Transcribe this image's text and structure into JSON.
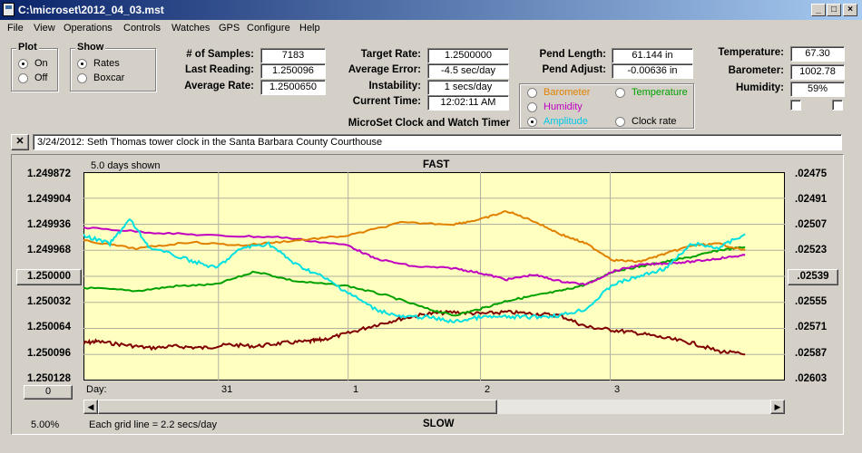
{
  "window": {
    "title": "C:\\microset\\2012_04_03.mst"
  },
  "menu": [
    "File",
    "View",
    "Operations",
    "Controls",
    "Watches",
    "GPS",
    "Configure",
    "Help"
  ],
  "plot": {
    "label": "Plot",
    "on": "On",
    "off": "Off",
    "selected": "On"
  },
  "show": {
    "label": "Show",
    "rates": "Rates",
    "boxcar": "Boxcar",
    "selected": "Rates"
  },
  "stats": {
    "samples_label": "# of Samples:",
    "samples": "7183",
    "last_label": "Last Reading:",
    "last": "1.250096",
    "avg_label": "Average Rate:",
    "avg": "1.2500650"
  },
  "target": {
    "rate_label": "Target Rate:",
    "rate": "1.2500000",
    "err_label": "Average Error:",
    "err": "-4.5 sec/day",
    "inst_label": "Instability:",
    "inst": "1 secs/day",
    "time_label": "Current Time:",
    "time": "12:02:11 AM"
  },
  "pend": {
    "length_label": "Pend Length:",
    "length": "61.144 in",
    "adjust_label": "Pend Adjust:",
    "adjust": "-0.00636 in"
  },
  "env": {
    "temp_label": "Temperature:",
    "temp": "67.30",
    "baro_label": "Barometer:",
    "baro": "1002.78",
    "hum_label": "Humidity:",
    "hum": "59%"
  },
  "app_title": "MicroSet Clock and Watch Timer",
  "series_select": {
    "barometer": "Barometer",
    "temperature": "Temperature",
    "humidity": "Humidity",
    "amplitude": "Amplitude",
    "clockrate": "Clock rate",
    "selected": "Amplitude",
    "colors": {
      "barometer": "#e08000",
      "temperature": "#00a000",
      "humidity": "#c000c0",
      "amplitude": "#00d0d0",
      "clockrate": "#000000"
    }
  },
  "close_btn": "✕",
  "description": "3/24/2012: Seth Thomas tower clock in the Santa Barbara County Courthouse",
  "chart_labels": {
    "days_shown": "5.0 days shown",
    "fast": "FAST",
    "slow": "SLOW",
    "day": "Day:",
    "grid_note": "Each grid line = 2.2 secs/day",
    "zoom": "5.00%",
    "left_btn": "1.250000",
    "right_btn": ".02539",
    "bottom_btn": "0"
  },
  "chart_data": {
    "type": "line",
    "left_axis": {
      "ticks": [
        "1.249872",
        "1.249904",
        "1.249936",
        "1.249968",
        "1.250000",
        "1.250032",
        "1.250064",
        "1.250096",
        "1.250128"
      ],
      "min": 1.249872,
      "max": 1.250128,
      "inverted": true
    },
    "right_axis": {
      "ticks": [
        ".02475",
        ".02491",
        ".02507",
        ".02523",
        ".02539",
        ".02555",
        ".02571",
        ".02587",
        ".02603"
      ]
    },
    "x_axis": {
      "label": "Day:",
      "ticks": [
        "31",
        "1",
        "2",
        "3"
      ]
    },
    "grid": true,
    "series": [
      {
        "color": "#800000",
        "x": [
          0,
          0.1,
          0.3,
          0.5,
          0.7,
          0.9,
          1.1,
          1.3,
          1.5,
          1.7,
          1.8,
          2.0,
          2.2,
          2.4,
          2.6,
          2.8,
          3.0,
          3.2,
          3.4,
          3.6,
          3.8,
          4.0,
          4.2,
          4.4,
          4.6,
          4.8,
          5.0
        ],
        "y": [
          1.250082,
          1.25008,
          1.250084,
          1.250088,
          1.250086,
          1.250088,
          1.250084,
          1.250086,
          1.250082,
          1.25008,
          1.250078,
          1.25007,
          1.25006,
          1.250052,
          1.250046,
          1.250044,
          1.250046,
          1.250044,
          1.250046,
          1.250048,
          1.250062,
          1.250066,
          1.25007,
          1.250076,
          1.250082,
          1.250092,
          1.250096
        ]
      },
      {
        "color": "#00a000",
        "x": [
          0,
          0.4,
          0.7,
          1.0,
          1.3,
          1.6,
          2.0,
          2.3,
          2.6,
          2.8,
          3.0,
          3.2,
          3.4,
          3.6,
          3.8,
          4.0,
          4.2,
          4.4,
          4.6,
          4.8,
          5.0
        ],
        "y": [
          1.250014,
          1.250018,
          1.250012,
          1.25001,
          1.249994,
          1.250006,
          1.250012,
          1.250024,
          1.25004,
          1.250048,
          1.25004,
          1.25003,
          1.250024,
          1.250018,
          1.25001,
          1.249994,
          1.249988,
          1.249982,
          1.249976,
          1.249968,
          1.249964
        ]
      },
      {
        "color": "#c000c0",
        "x": [
          0,
          0.5,
          1.0,
          1.5,
          2.0,
          2.2,
          2.5,
          2.8,
          3.0,
          3.2,
          3.4,
          3.6,
          3.8,
          4.0,
          4.2,
          4.4,
          4.6,
          4.8,
          5.0
        ],
        "y": [
          1.24994,
          1.249946,
          1.24995,
          1.249952,
          1.249962,
          1.249978,
          1.249988,
          1.24999,
          1.249996,
          1.250004,
          1.249998,
          1.250006,
          1.25001,
          1.249994,
          1.249986,
          1.249984,
          1.249982,
          1.249978,
          1.249974
        ]
      },
      {
        "color": "#e08000",
        "x": [
          0,
          0.4,
          0.8,
          1.2,
          1.6,
          2.0,
          2.4,
          2.8,
          3.0,
          3.2,
          3.4,
          3.6,
          3.8,
          4.0,
          4.2,
          4.4,
          4.6,
          4.8,
          5.0
        ],
        "y": [
          1.249956,
          1.249966,
          1.249958,
          1.249962,
          1.249956,
          1.24995,
          1.249934,
          1.249936,
          1.24993,
          1.24992,
          1.249932,
          1.249948,
          1.24996,
          1.24998,
          1.249982,
          1.249972,
          1.249962,
          1.24996,
          1.249968
        ]
      },
      {
        "color": "#00e0e0",
        "x": [
          0,
          0.2,
          0.35,
          0.5,
          0.8,
          1.0,
          1.2,
          1.4,
          1.6,
          1.8,
          2.0,
          2.2,
          2.4,
          2.6,
          2.8,
          3.0,
          3.2,
          3.4,
          3.6,
          3.8,
          4.0,
          4.2,
          4.4,
          4.6,
          4.8,
          5.0
        ],
        "y": [
          1.24995,
          1.24996,
          1.24993,
          1.249965,
          1.24998,
          1.24999,
          1.249965,
          1.24996,
          1.249985,
          1.25,
          1.25002,
          1.25004,
          1.25005,
          1.25005,
          1.250056,
          1.25005,
          1.25005,
          1.25005,
          1.250048,
          1.25004,
          1.25001,
          1.25,
          1.24999,
          1.24996,
          1.249965,
          1.249948
        ]
      }
    ]
  }
}
